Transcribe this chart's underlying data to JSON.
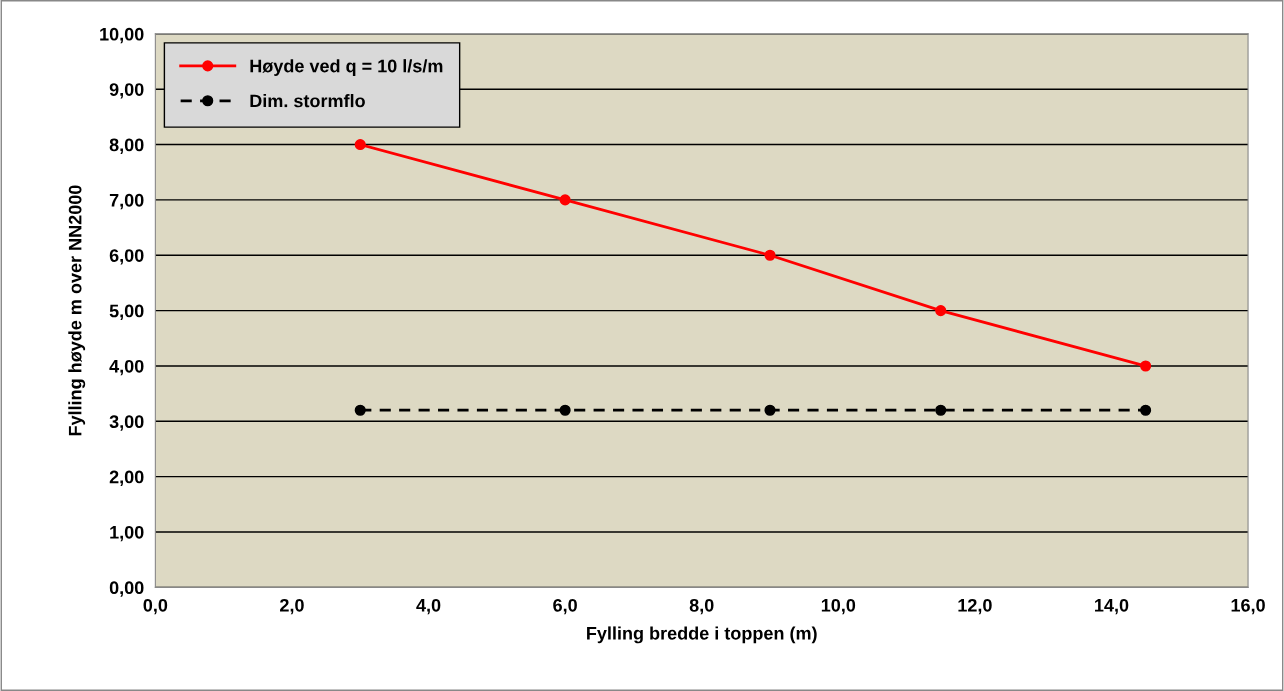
{
  "chart_data": {
    "type": "line",
    "xlabel": "Fylling bredde i toppen (m)",
    "ylabel": "Fylling høyde m over NN2000",
    "x": [
      3,
      6,
      9,
      11.5,
      14.5
    ],
    "series": [
      {
        "name": "Høyde ved q = 10 l/s/m",
        "color": "#ff0000",
        "values": [
          8,
          7,
          6,
          5,
          4
        ],
        "line_style": "solid"
      },
      {
        "name": "Dim. stormflo",
        "color": "#000000",
        "values": [
          3.2,
          3.2,
          3.2,
          3.2,
          3.2
        ],
        "line_style": "dashed"
      }
    ],
    "marker": "circle",
    "grid": "y",
    "legend": "top left",
    "xlim": [
      0,
      16
    ],
    "xticks": [
      {
        "value": 0,
        "label": "0,0"
      },
      {
        "value": 2,
        "label": "2,0"
      },
      {
        "value": 4,
        "label": "4,0"
      },
      {
        "value": 6,
        "label": "6,0"
      },
      {
        "value": 8,
        "label": "8,0"
      },
      {
        "value": 10,
        "label": "10,0"
      },
      {
        "value": 12,
        "label": "12,0"
      },
      {
        "value": 14,
        "label": "14,0"
      },
      {
        "value": 16,
        "label": "16,0"
      }
    ],
    "ylim": [
      0,
      10
    ],
    "yticks": [
      {
        "value": 0,
        "label": "0,00"
      },
      {
        "value": 1,
        "label": "1,00"
      },
      {
        "value": 2,
        "label": "2,00"
      },
      {
        "value": 3,
        "label": "3,00"
      },
      {
        "value": 4,
        "label": "4,00"
      },
      {
        "value": 5,
        "label": "5,00"
      },
      {
        "value": 6,
        "label": "6,00"
      },
      {
        "value": 7,
        "label": "7,00"
      },
      {
        "value": 8,
        "label": "8,00"
      },
      {
        "value": 9,
        "label": "9,00"
      },
      {
        "value": 10,
        "label": "10,00"
      }
    ]
  }
}
